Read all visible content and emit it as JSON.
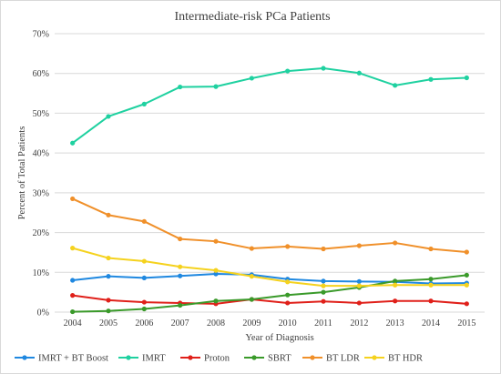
{
  "chart_data": {
    "type": "line",
    "title": "Intermediate-risk PCa Patients",
    "xlabel": "Year of Diagnosis",
    "ylabel": "Percent of Total Patients",
    "categories": [
      "2004",
      "2005",
      "2006",
      "2007",
      "2008",
      "2009",
      "2010",
      "2011",
      "2012",
      "2013",
      "2014",
      "2015"
    ],
    "ylim": [
      0,
      70
    ],
    "yticks": [
      0,
      10,
      20,
      30,
      40,
      50,
      60,
      70
    ],
    "ytick_labels": [
      "0%",
      "10%",
      "20%",
      "30%",
      "40%",
      "50%",
      "60%",
      "70%"
    ],
    "grid": "horizontal",
    "legend_position": "bottom",
    "series": [
      {
        "name": "IMRT + BT Boost",
        "color": "#1f88e0",
        "values": [
          8.0,
          9.0,
          8.6,
          9.1,
          9.6,
          9.4,
          8.3,
          7.8,
          7.7,
          7.6,
          7.2,
          7.3
        ]
      },
      {
        "name": "IMRT",
        "color": "#1fd1a0",
        "values": [
          42.5,
          49.2,
          52.3,
          56.6,
          56.7,
          58.8,
          60.6,
          61.3,
          60.1,
          57.0,
          58.5,
          58.9
        ]
      },
      {
        "name": "Proton",
        "color": "#e0201a",
        "values": [
          4.2,
          3.0,
          2.5,
          2.3,
          2.1,
          3.2,
          2.3,
          2.7,
          2.3,
          2.8,
          2.8,
          2.1
        ]
      },
      {
        "name": "SBRT",
        "color": "#3a9a2a",
        "values": [
          0.1,
          0.3,
          0.8,
          1.7,
          2.8,
          3.2,
          4.3,
          5.0,
          6.2,
          7.8,
          8.3,
          9.3
        ]
      },
      {
        "name": "BT LDR",
        "color": "#f0902a",
        "values": [
          28.5,
          24.4,
          22.8,
          18.4,
          17.8,
          16.0,
          16.5,
          15.9,
          16.7,
          17.4,
          15.9,
          15.1
        ]
      },
      {
        "name": "BT HDR",
        "color": "#f5d21e",
        "values": [
          16.1,
          13.6,
          12.8,
          11.4,
          10.5,
          9.0,
          7.6,
          6.6,
          6.6,
          6.8,
          6.8,
          6.8
        ]
      }
    ]
  }
}
